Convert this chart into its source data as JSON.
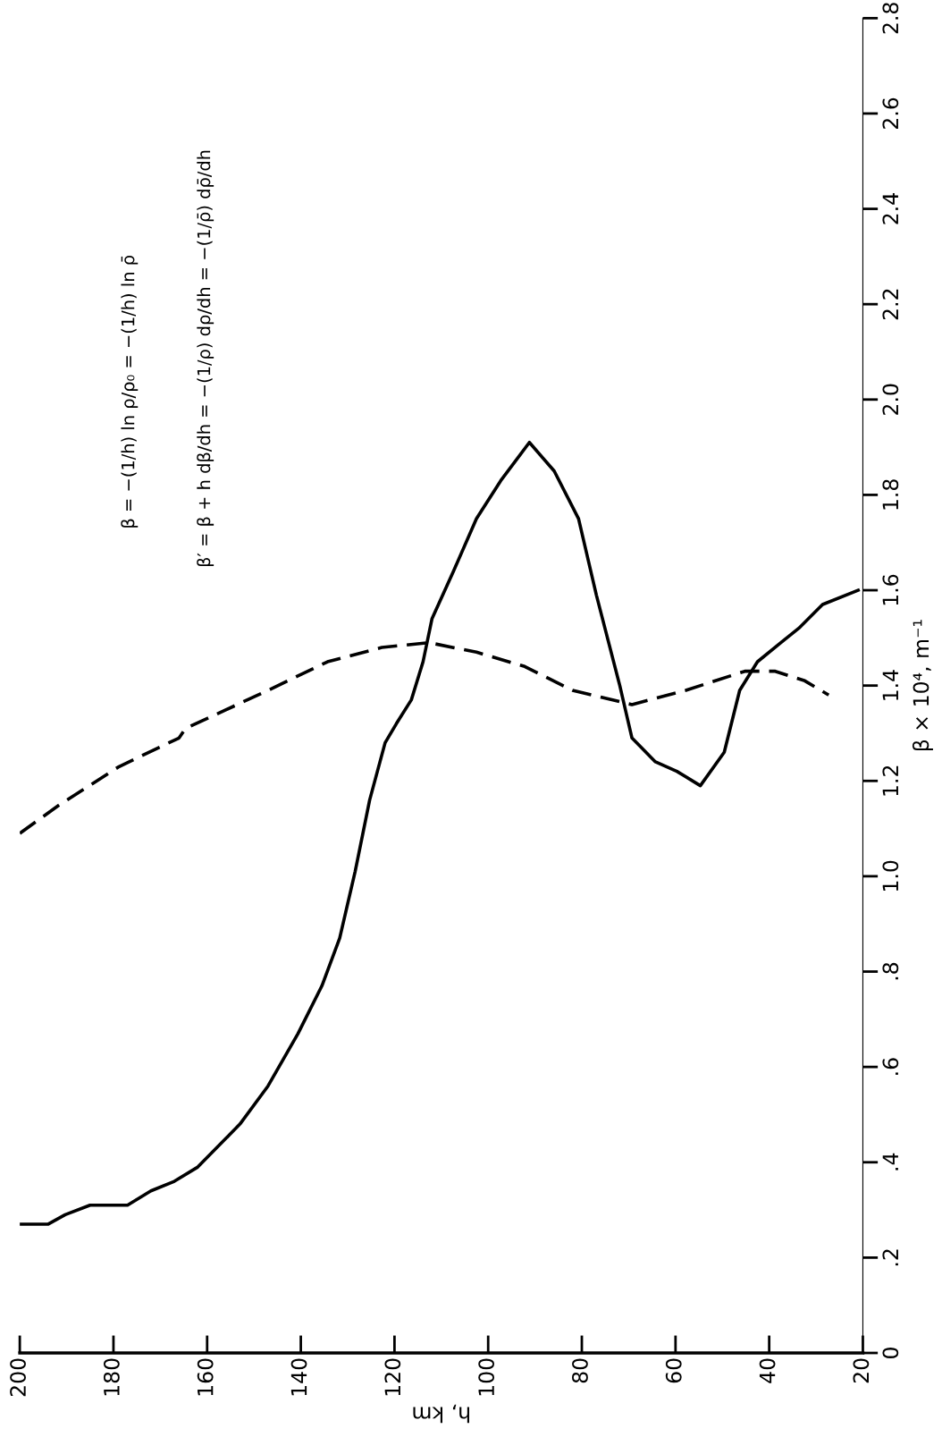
{
  "chart_data": {
    "type": "line",
    "xlabel": "h, km",
    "ylabel": "β × 10⁴, m⁻¹",
    "xlim": [
      200,
      20
    ],
    "xticks": [
      200,
      180,
      160,
      140,
      120,
      100,
      80,
      60,
      40,
      20
    ],
    "ylim": [
      0,
      2.8
    ],
    "yticks": [
      0,
      {
        "value": 0.2,
        "label": ".2"
      },
      {
        "value": 0.4,
        "label": ".4"
      },
      {
        "value": 0.6,
        "label": ".6"
      },
      {
        "value": 0.8,
        "label": ".8"
      },
      {
        "value": 1.0,
        "label": "1.0"
      },
      {
        "value": 1.2,
        "label": "1.2"
      },
      {
        "value": 1.4,
        "label": "1.4"
      },
      {
        "value": 1.6,
        "label": "1.6"
      },
      {
        "value": 1.8,
        "label": "1.8"
      },
      {
        "value": 2.0,
        "label": "2.0"
      },
      {
        "value": 2.2,
        "label": "2.2"
      },
      {
        "value": 2.4,
        "label": "2.4"
      },
      {
        "value": 2.6,
        "label": "2.6"
      },
      {
        "value": 2.8,
        "label": "2.8"
      }
    ],
    "grid": false,
    "series": [
      {
        "color": "#000000",
        "line_style": "solid",
        "x": [
          200,
          194,
          190.3,
          185,
          177,
          172,
          167,
          162,
          153,
          147,
          140.6,
          135.5,
          131.7,
          128.4,
          125.3,
          122,
          119.6,
          116.4,
          113.9,
          112,
          107.4,
          102.5,
          97.3,
          91.2,
          85.9,
          80.7,
          76.9,
          71.9,
          69.3,
          64.3,
          59.7,
          54.7,
          49.6,
          46.3,
          42.5,
          37.5,
          33.7,
          28.6,
          21
        ],
        "values": [
          0.27,
          0.27,
          0.29,
          0.31,
          0.31,
          0.34,
          0.36,
          0.39,
          0.48,
          0.56,
          0.67,
          0.77,
          0.87,
          1.01,
          1.16,
          1.28,
          1.32,
          1.37,
          1.45,
          1.54,
          1.64,
          1.75,
          1.83,
          1.91,
          1.85,
          1.75,
          1.59,
          1.4,
          1.29,
          1.24,
          1.22,
          1.19,
          1.26,
          1.39,
          1.45,
          1.49,
          1.52,
          1.57,
          1.6
        ]
      },
      {
        "color": "#000000",
        "line_style": "dashed",
        "x": [
          200,
          191.5,
          178.8,
          166,
          164.6,
          147,
          134.3,
          122.7,
          112.6,
          102.5,
          92.2,
          82,
          69.3,
          57.8,
          45.2,
          38.7,
          32.4,
          27.3
        ],
        "values": [
          1.09,
          1.15,
          1.23,
          1.29,
          1.31,
          1.39,
          1.45,
          1.48,
          1.49,
          1.47,
          1.44,
          1.39,
          1.36,
          1.39,
          1.43,
          1.43,
          1.41,
          1.38
        ]
      }
    ],
    "annotations": [
      "β′ = β + h dβ/dh = −(1/ρ) dρ/dh = −(1/ρ̄) dρ̄/dh",
      "β = −(1/h) ln ρ/ρ₀ = −(1/h) ln ρ̄"
    ]
  }
}
